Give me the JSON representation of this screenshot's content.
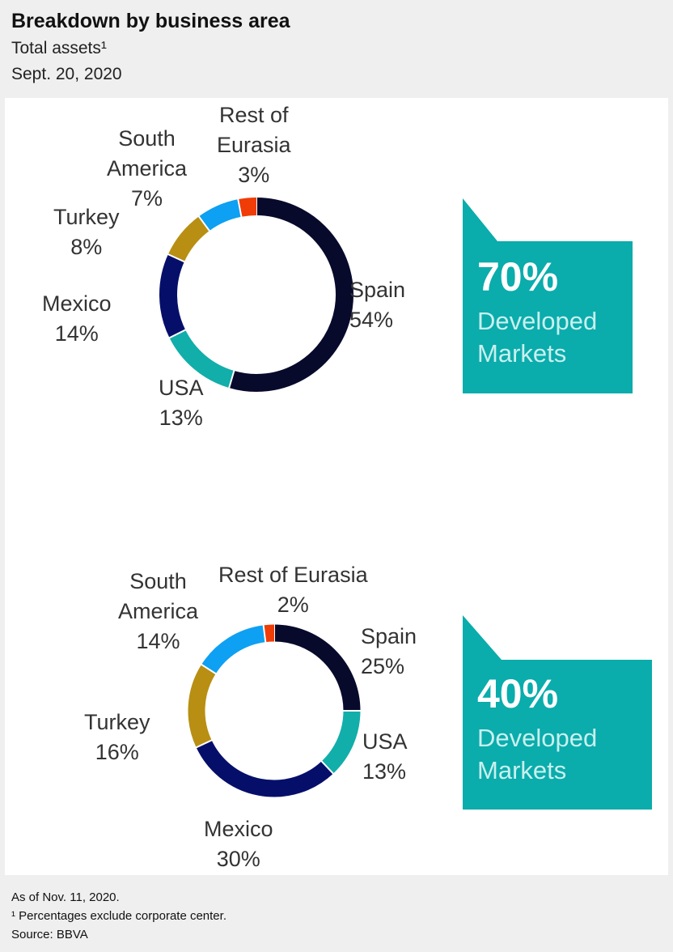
{
  "title": "Breakdown by business area",
  "subtitle": "Total assets¹",
  "date": "Sept. 20, 2020",
  "footnotes": [
    "As of Nov. 11, 2020.",
    "¹ Percentages exclude corporate center.",
    "Source: BBVA"
  ],
  "colors": {
    "Spain": "#080a2c",
    "USA": "#12aeaa",
    "Mexico": "#050f6a",
    "Turkey": "#b88f12",
    "South America": "#0ea0f2",
    "Rest of Eurasia": "#f03c06",
    "callout": "#0aacac"
  },
  "chart_data": [
    {
      "type": "pie",
      "variant": "donut",
      "categories": [
        "Spain",
        "USA",
        "Mexico",
        "Turkey",
        "South America",
        "Rest of Eurasia"
      ],
      "values": [
        54,
        13,
        14,
        8,
        7,
        3
      ],
      "labels": [
        "Spain\n54%",
        "USA\n13%",
        "Mexico\n14%",
        "Turkey\n8%",
        "South\nAmerica\n7%",
        "Rest of\nEurasia\n3%"
      ],
      "callout": {
        "value": "70%",
        "text": "Developed\nMarkets"
      }
    },
    {
      "type": "pie",
      "variant": "donut",
      "categories": [
        "Spain",
        "USA",
        "Mexico",
        "Turkey",
        "South America",
        "Rest of Eurasia"
      ],
      "values": [
        25,
        13,
        30,
        16,
        14,
        2
      ],
      "labels": [
        "Spain\n25%",
        "USA\n13%",
        "Mexico\n30%",
        "Turkey\n16%",
        "South\nAmerica\n14%",
        "Rest of Eurasia\n2%"
      ],
      "callout": {
        "value": "40%",
        "text": "Developed\nMarkets"
      }
    }
  ]
}
